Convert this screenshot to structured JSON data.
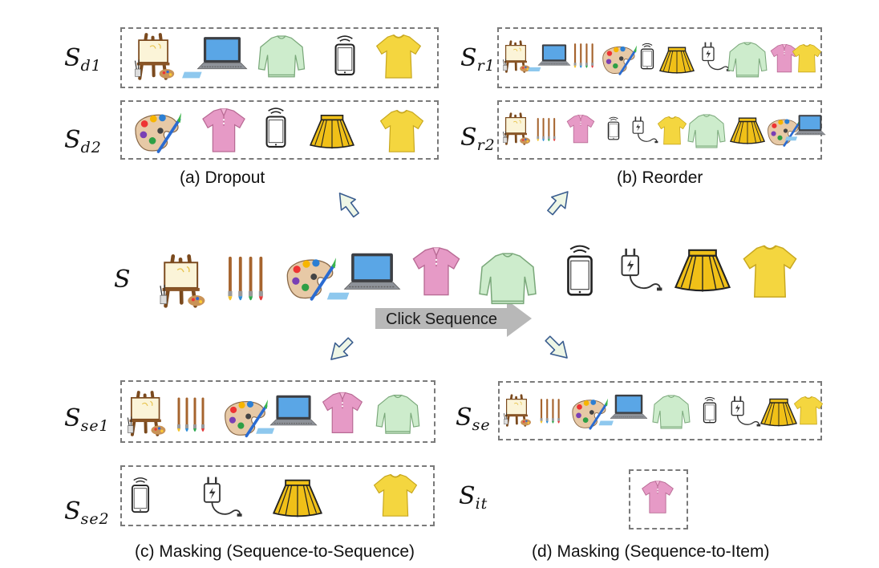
{
  "labels": {
    "d1": {
      "main": "S",
      "sub": "d1"
    },
    "d2": {
      "main": "S",
      "sub": "d2"
    },
    "r1": {
      "main": "S",
      "sub": "r1"
    },
    "r2": {
      "main": "S",
      "sub": "r2"
    },
    "s": {
      "main": "S"
    },
    "se1": {
      "main": "S",
      "sub": "se1"
    },
    "se2": {
      "main": "S",
      "sub": "se2"
    },
    "se": {
      "main": "S",
      "sub": "se"
    },
    "it": {
      "main": "S",
      "sub": "it"
    }
  },
  "captions": {
    "a": "(a) Dropout",
    "b": "(b) Reorder",
    "c": "(c) Masking (Sequence-to-Sequence)",
    "d": "(d) Masking (Sequence-to-Item)"
  },
  "click_sequence": "Click Sequence",
  "colors": {
    "box_border": "#7a7a7a",
    "arrow_fill": "#eef6e6",
    "arrow_stroke": "#3a5d8f",
    "big_arrow": "#b8b8b8",
    "shirt_pink": "#e69ac6",
    "sweater_green": "#cdeccc",
    "tshirt_yellow": "#f4d63f",
    "skirt_yellow": "#f0c018"
  },
  "icons": [
    "easel-icon",
    "brushes-icon",
    "palette-icon",
    "laptop-icon",
    "pink-shirt-icon",
    "green-sweater-icon",
    "phone-icon",
    "charger-icon",
    "yellow-skirt-icon",
    "yellow-tshirt-icon"
  ],
  "sequences": {
    "S": [
      "easel",
      "brushes",
      "palette",
      "laptop",
      "shirt",
      "sweater",
      "phone",
      "charger",
      "skirt",
      "tshirt"
    ],
    "Sd1": [
      "easel",
      "laptop",
      "sweater",
      "phone",
      "tshirt"
    ],
    "Sd2": [
      "palette",
      "shirt",
      "phone",
      "skirt",
      "tshirt"
    ],
    "Sr1": [
      "easel",
      "laptop",
      "brushes",
      "palette",
      "phone",
      "skirt",
      "charger",
      "sweater",
      "shirt",
      "tshirt"
    ],
    "Sr2": [
      "easel",
      "brushes",
      "shirt",
      "phone",
      "charger",
      "tshirt",
      "sweater",
      "skirt",
      "palette",
      "laptop"
    ],
    "Sse1": [
      "easel",
      "brushes",
      "palette",
      "laptop",
      "shirt",
      "sweater"
    ],
    "Sse2": [
      "phone",
      "charger",
      "skirt",
      "tshirt"
    ],
    "Sse": [
      "easel",
      "brushes",
      "palette",
      "laptop",
      "sweater",
      "phone",
      "charger",
      "skirt",
      "tshirt"
    ],
    "Sit": [
      "shirt"
    ]
  }
}
